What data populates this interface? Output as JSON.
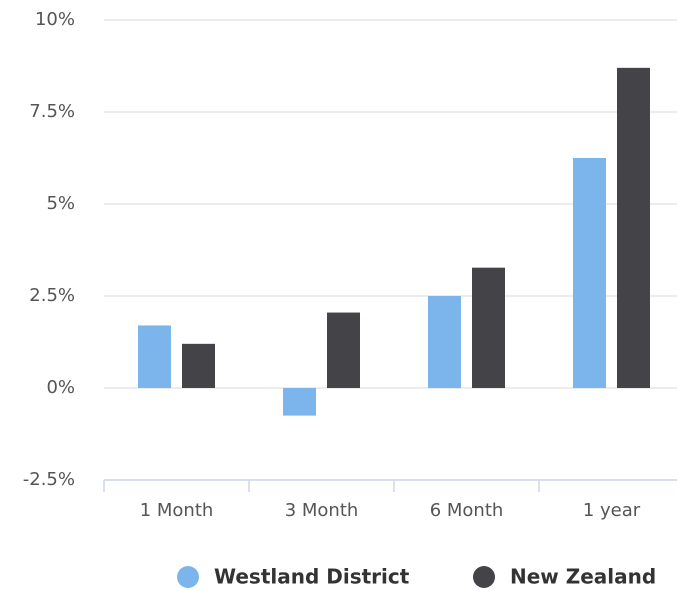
{
  "chart_data": {
    "type": "bar",
    "categories": [
      "1 Month",
      "3 Month",
      "6 Month",
      "1 year"
    ],
    "series": [
      {
        "name": "Westland District",
        "color": "#7cb5ec",
        "values": [
          1.7,
          -0.75,
          2.5,
          6.25
        ]
      },
      {
        "name": "New Zealand",
        "color": "#434348",
        "values": [
          1.2,
          2.05,
          3.27,
          8.7
        ]
      }
    ],
    "ylim": [
      -2.5,
      10
    ],
    "yticks": [
      {
        "value": -2.5,
        "label": "-2.5%"
      },
      {
        "value": 0,
        "label": "0%"
      },
      {
        "value": 2.5,
        "label": "2.5%"
      },
      {
        "value": 5,
        "label": "5%"
      },
      {
        "value": 7.5,
        "label": "7.5%"
      },
      {
        "value": 10,
        "label": "10%"
      }
    ],
    "grid": true,
    "legend": "bottom"
  }
}
